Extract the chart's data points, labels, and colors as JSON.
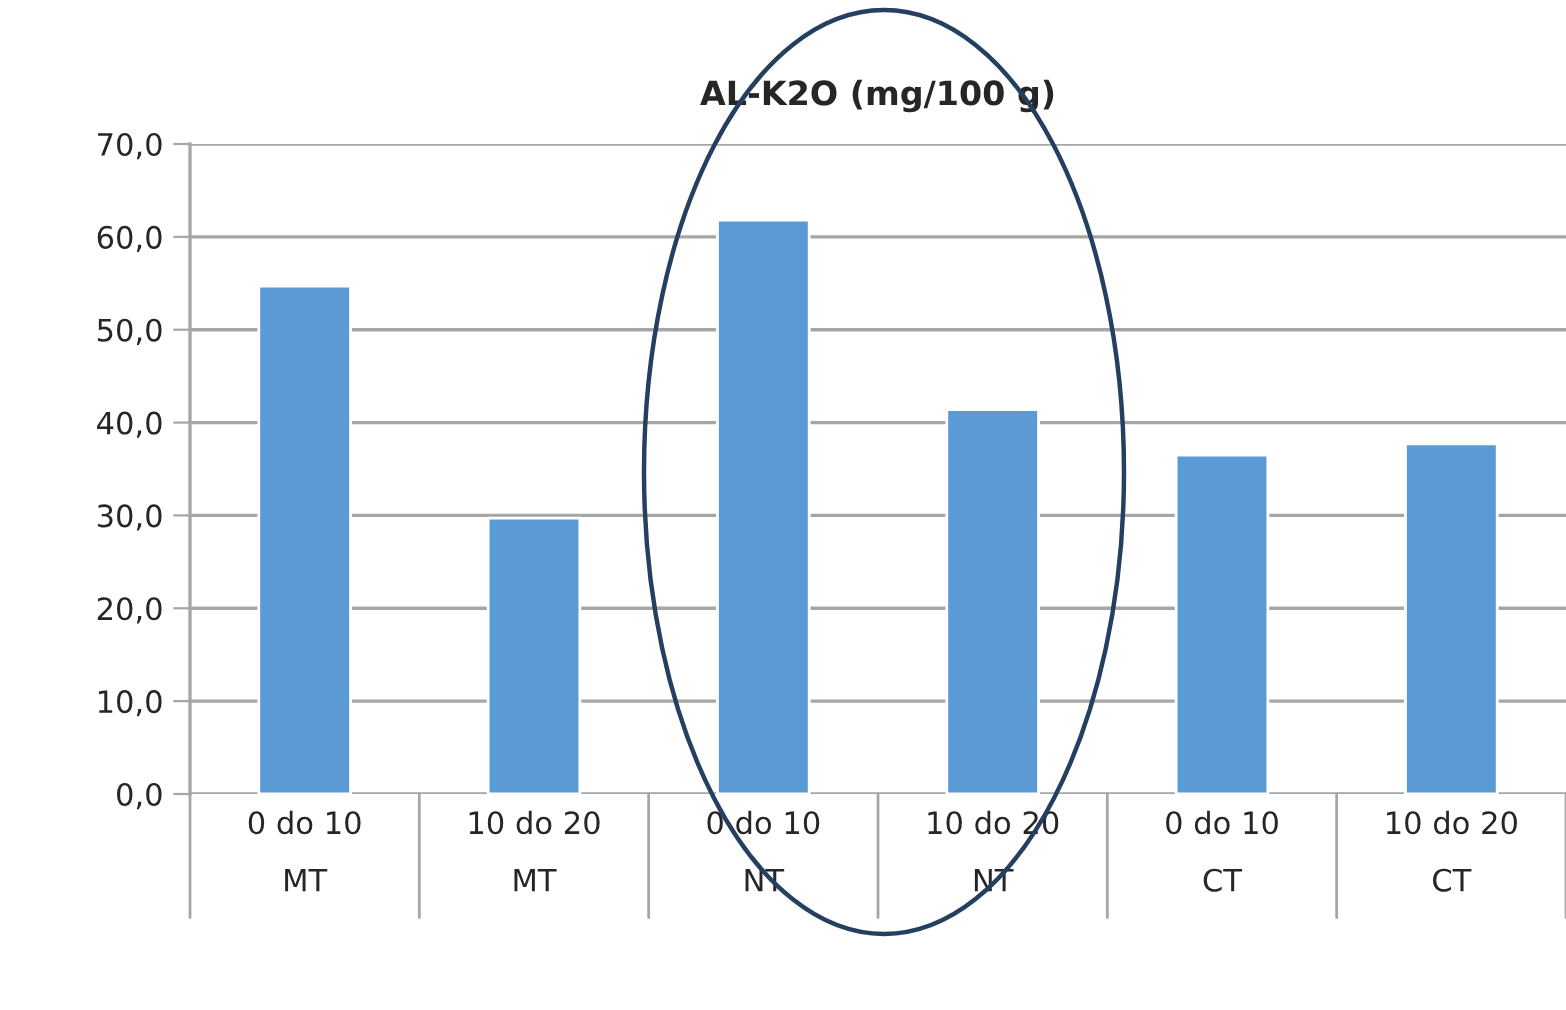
{
  "chart_data": {
    "type": "bar",
    "title": "AL-K2O (mg/100 g)",
    "categories": [
      "0 do 10\nMT",
      "10 do 20\nMT",
      "0 do 10\nNT",
      "10 do 20\nNT",
      "0 do 10\nCT",
      "10 do 20\nCT"
    ],
    "values": [
      54.7,
      29.7,
      61.8,
      41.4,
      36.5,
      37.7
    ],
    "color": "#5b9bd5",
    "ylim": [
      0,
      70
    ],
    "yticks": [
      {
        "value": 0,
        "label": "0,0"
      },
      {
        "value": 10,
        "label": "10,0"
      },
      {
        "value": 20,
        "label": "20,0"
      },
      {
        "value": 30,
        "label": "30,0"
      },
      {
        "value": 40,
        "label": "40,0"
      },
      {
        "value": 50,
        "label": "50,0"
      },
      {
        "value": 60,
        "label": "60,0"
      },
      {
        "value": 70,
        "label": "70,0"
      }
    ],
    "grid": "y",
    "legend": false
  }
}
